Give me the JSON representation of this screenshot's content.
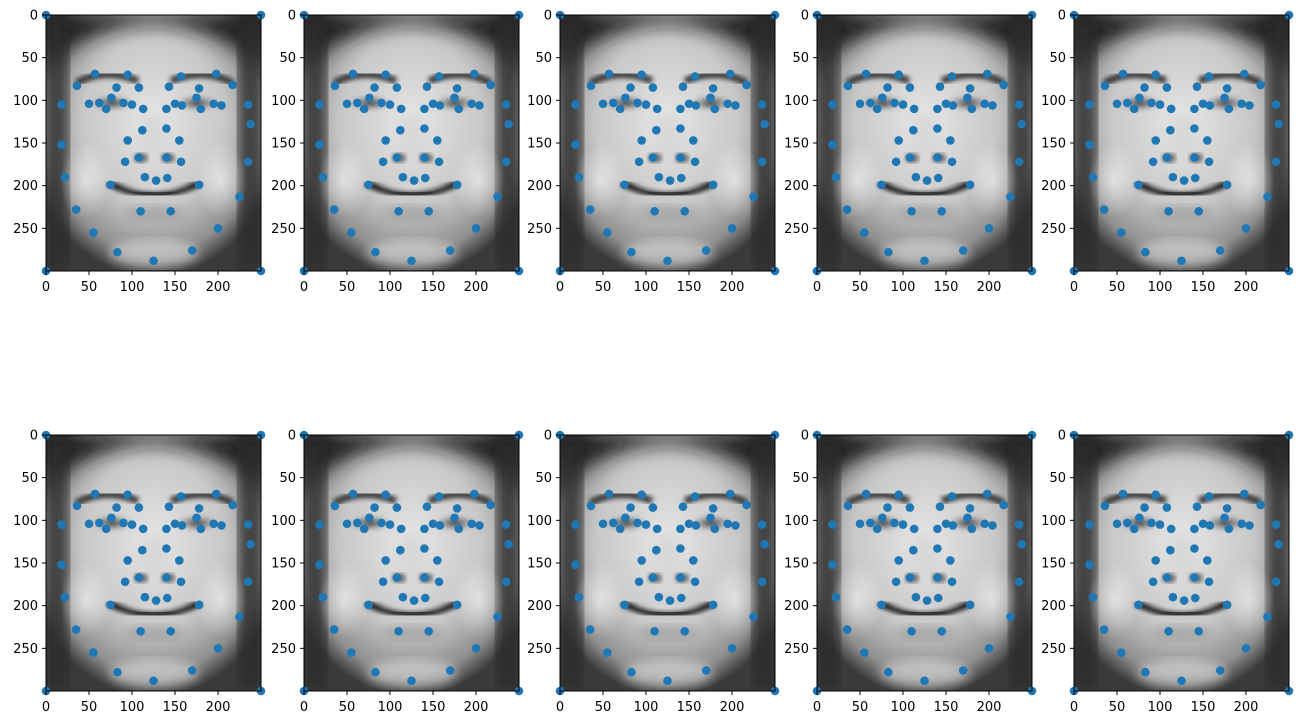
{
  "chart_data": {
    "type": "scatter",
    "layout": {
      "rows": 2,
      "cols": 5
    },
    "background_image": "grayscale-average-face",
    "marker_color": "#1f77b4",
    "xlim": [
      0,
      250
    ],
    "ylim": [
      300,
      0
    ],
    "x_ticks": [
      0,
      50,
      100,
      150,
      200
    ],
    "y_ticks": [
      0,
      50,
      100,
      150,
      200,
      250
    ],
    "grid": false,
    "points": [
      [
        0,
        0
      ],
      [
        250,
        0
      ],
      [
        0,
        300
      ],
      [
        250,
        300
      ],
      [
        18,
        105
      ],
      [
        18,
        152
      ],
      [
        22,
        190
      ],
      [
        35,
        228
      ],
      [
        55,
        255
      ],
      [
        83,
        278
      ],
      [
        125,
        288
      ],
      [
        170,
        276
      ],
      [
        200,
        250
      ],
      [
        225,
        213
      ],
      [
        235,
        172
      ],
      [
        238,
        128
      ],
      [
        235,
        105
      ],
      [
        36,
        83
      ],
      [
        57,
        69
      ],
      [
        82,
        85
      ],
      [
        95,
        70
      ],
      [
        108,
        85
      ],
      [
        143,
        84
      ],
      [
        157,
        72
      ],
      [
        178,
        86
      ],
      [
        198,
        69
      ],
      [
        217,
        82
      ],
      [
        50,
        104
      ],
      [
        62,
        103
      ],
      [
        70,
        110
      ],
      [
        76,
        97
      ],
      [
        90,
        103
      ],
      [
        100,
        105
      ],
      [
        113,
        110
      ],
      [
        140,
        110
      ],
      [
        150,
        104
      ],
      [
        158,
        106
      ],
      [
        175,
        97
      ],
      [
        180,
        110
      ],
      [
        195,
        104
      ],
      [
        204,
        106
      ],
      [
        112,
        135
      ],
      [
        140,
        133
      ],
      [
        95,
        147
      ],
      [
        155,
        147
      ],
      [
        92,
        172
      ],
      [
        108,
        167
      ],
      [
        140,
        167
      ],
      [
        157,
        172
      ],
      [
        75,
        199
      ],
      [
        115,
        190
      ],
      [
        128,
        194
      ],
      [
        141,
        191
      ],
      [
        178,
        199
      ],
      [
        110,
        230
      ],
      [
        145,
        230
      ]
    ],
    "panels": [
      {
        "id": 1
      },
      {
        "id": 2
      },
      {
        "id": 3
      },
      {
        "id": 4
      },
      {
        "id": 5
      },
      {
        "id": 6
      },
      {
        "id": 7
      },
      {
        "id": 8
      },
      {
        "id": 9
      },
      {
        "id": 10
      }
    ]
  }
}
